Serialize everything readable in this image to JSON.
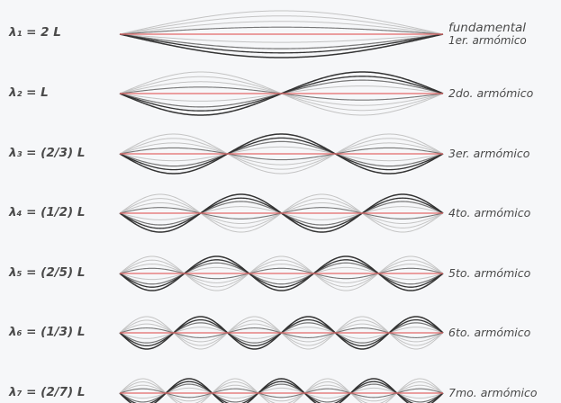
{
  "rows": [
    {
      "formula": "λ₁ = 2 L",
      "label_line1": "fundamental",
      "label_line2": "1er. armómico",
      "n": 1
    },
    {
      "formula": "λ₂ = L",
      "label_line1": "2do. armómico",
      "n": 2
    },
    {
      "formula": "λ₃ = (2/3) L",
      "label_line1": "3er. armómico",
      "n": 3
    },
    {
      "formula": "λ₄ = (1/2) L",
      "label_line1": "4to. armómico",
      "n": 4
    },
    {
      "formula": "λ₅ = (2/5) L",
      "label_line1": "5to. armómico",
      "n": 5
    },
    {
      "formula": "λ₆ = (1/3) L",
      "label_line1": "6to. armómico",
      "n": 6
    },
    {
      "formula": "λ₇ = (2/7) L",
      "label_line1": "7mo. armómico",
      "n": 7
    }
  ],
  "colors": {
    "background": "#f6f7f9",
    "text": "#4a4a4a",
    "axis": "#e36a6a",
    "wave_dark": "#333333",
    "wave_mid": "#777777",
    "wave_light": "#c4c4c4"
  }
}
